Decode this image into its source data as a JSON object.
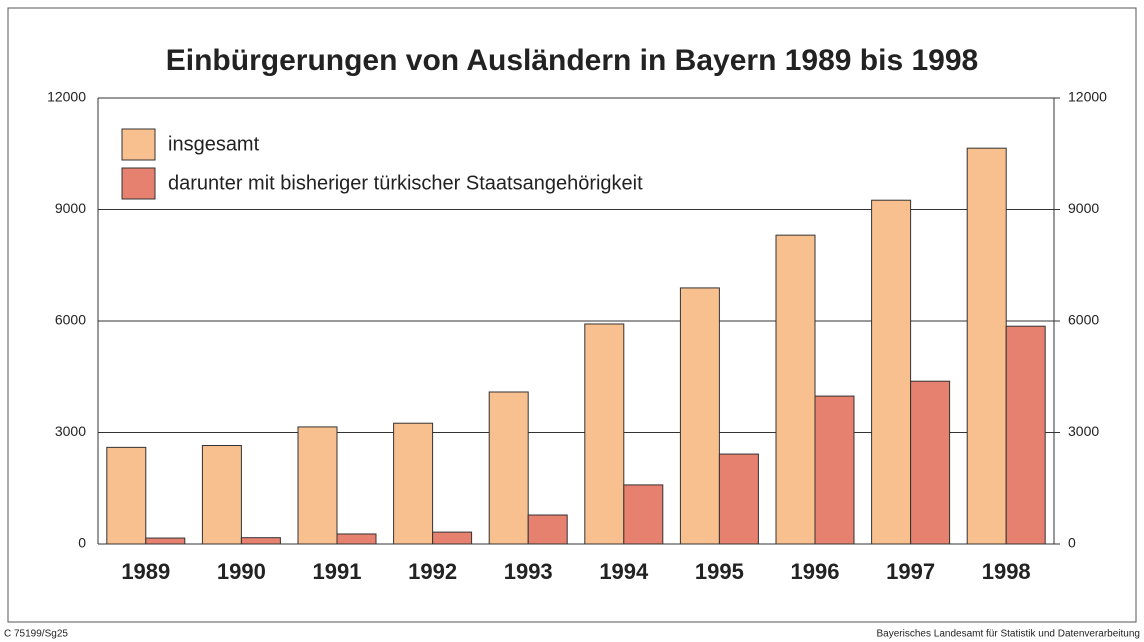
{
  "chart_data": {
    "type": "bar",
    "title": "Einbürgerungen von Ausländern in Bayern 1989 bis 1998",
    "categories": [
      "1989",
      "1990",
      "1991",
      "1992",
      "1993",
      "1994",
      "1995",
      "1996",
      "1997",
      "1998"
    ],
    "series": [
      {
        "name": "insgesamt",
        "color": "#f8c08f",
        "values": [
          2600,
          2650,
          3150,
          3250,
          4090,
          5920,
          6890,
          8310,
          9250,
          10650
        ]
      },
      {
        "name": "darunter mit bisheriger türkischer Staatsangehörigkeit",
        "color": "#e6806f",
        "values": [
          160,
          170,
          270,
          320,
          780,
          1590,
          2420,
          3980,
          4380,
          5860
        ]
      }
    ],
    "ylim": [
      0,
      12000
    ],
    "yticks": [
      0,
      3000,
      6000,
      9000,
      12000
    ],
    "y2lim": [
      0,
      12000
    ],
    "y2ticks": [
      0,
      3000,
      6000,
      9000,
      12000
    ],
    "grid": true,
    "legend": "top-left"
  },
  "footer": {
    "left": "C 75199/Sg25",
    "right": "Bayerisches Landesamt für Statistik und Datenverarbeitung"
  }
}
